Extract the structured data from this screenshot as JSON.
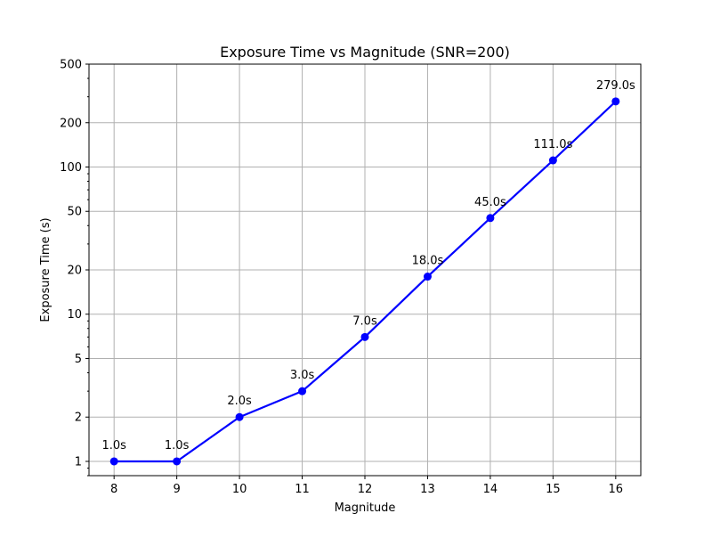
{
  "chart_data": {
    "type": "line",
    "title": "Exposure Time vs Magnitude (SNR=200)",
    "xlabel": "Magnitude",
    "ylabel": "Exposure Time (s)",
    "yscale": "log",
    "grid": true,
    "xlim": [
      7.6,
      16.4
    ],
    "ylim": [
      0.8,
      500
    ],
    "x_ticks": [
      8,
      9,
      10,
      11,
      12,
      13,
      14,
      15,
      16
    ],
    "y_ticks": [
      1,
      2,
      5,
      10,
      20,
      50,
      100,
      200,
      500
    ],
    "series": [
      {
        "color": "#0000ff",
        "marker": "circle",
        "x": [
          8,
          9,
          10,
          11,
          12,
          13,
          14,
          15,
          16
        ],
        "y": [
          1.0,
          1.0,
          2.0,
          3.0,
          7.0,
          18.0,
          45.0,
          111.0,
          279.0
        ],
        "labels": [
          "1.0s",
          "1.0s",
          "2.0s",
          "3.0s",
          "7.0s",
          "18.0s",
          "45.0s",
          "111.0s",
          "279.0s"
        ]
      }
    ]
  }
}
